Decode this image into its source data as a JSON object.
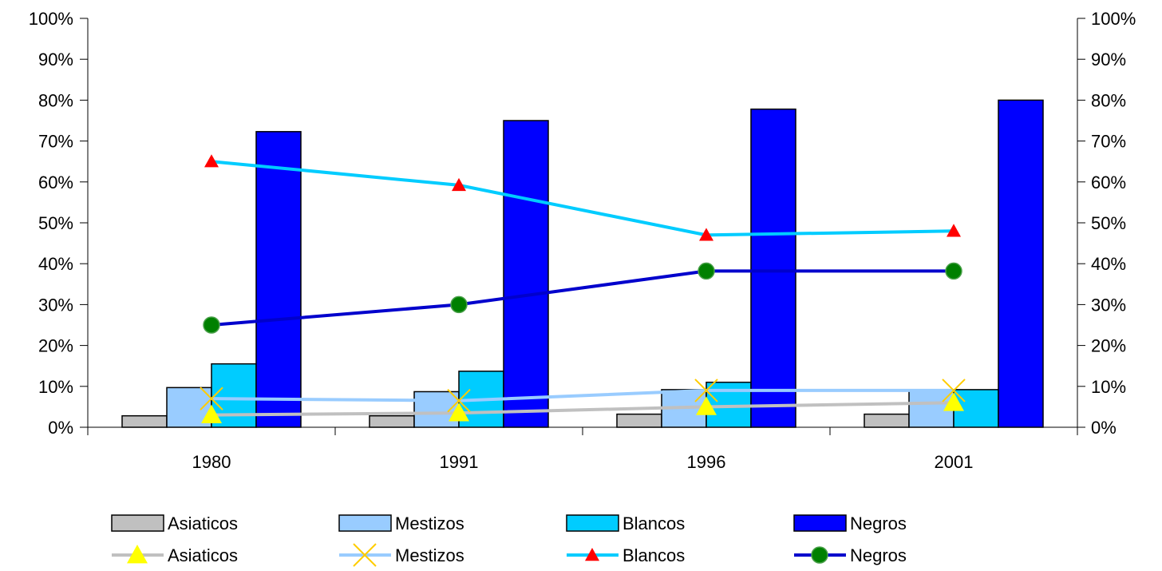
{
  "chart_data": {
    "type": "bar",
    "title": "",
    "xlabel": "",
    "ylabel": "",
    "categories": [
      "1980",
      "1991",
      "1996",
      "2001"
    ],
    "ylim": [
      0,
      100
    ],
    "y_ticks": [
      "0%",
      "10%",
      "20%",
      "30%",
      "40%",
      "50%",
      "60%",
      "70%",
      "80%",
      "90%",
      "100%"
    ],
    "y_ticks_right": [
      "0%",
      "10%",
      "20%",
      "30%",
      "40%",
      "50%",
      "60%",
      "70%",
      "80%",
      "90%",
      "100%"
    ],
    "grid": false,
    "legend_position": "bottom",
    "bar_series": [
      {
        "name": "Asiaticos",
        "color": "#c0c0c0",
        "values": [
          2.8,
          2.8,
          3.2,
          3.2
        ]
      },
      {
        "name": "Mestizos",
        "color": "#99ccff",
        "values": [
          9.7,
          8.7,
          9.2,
          9.2
        ]
      },
      {
        "name": "Blancos",
        "color": "#00ccff",
        "values": [
          15.5,
          13.7,
          11.0,
          9.2
        ]
      },
      {
        "name": "Negros",
        "color": "#0000ff",
        "values": [
          72.3,
          75.0,
          77.8,
          80.0
        ]
      }
    ],
    "line_series": [
      {
        "name": "Asiaticos",
        "color": "#c0c0c0",
        "marker": "triangle",
        "marker_color": "#ffff00",
        "values": [
          3.0,
          3.5,
          5.0,
          6.0
        ]
      },
      {
        "name": "Mestizos",
        "color": "#99ccff",
        "marker": "x",
        "marker_color": "#ffcc00",
        "values": [
          7.0,
          6.5,
          9.0,
          9.0
        ]
      },
      {
        "name": "Blancos",
        "color": "#00ccff",
        "marker": "triangle",
        "marker_color": "#ff0000",
        "values": [
          65.0,
          59.2,
          47.0,
          48.0
        ]
      },
      {
        "name": "Negros",
        "color": "#0000cc",
        "marker": "circle",
        "marker_color": "#008000",
        "values": [
          25.0,
          30.0,
          38.2,
          38.2
        ]
      }
    ]
  }
}
